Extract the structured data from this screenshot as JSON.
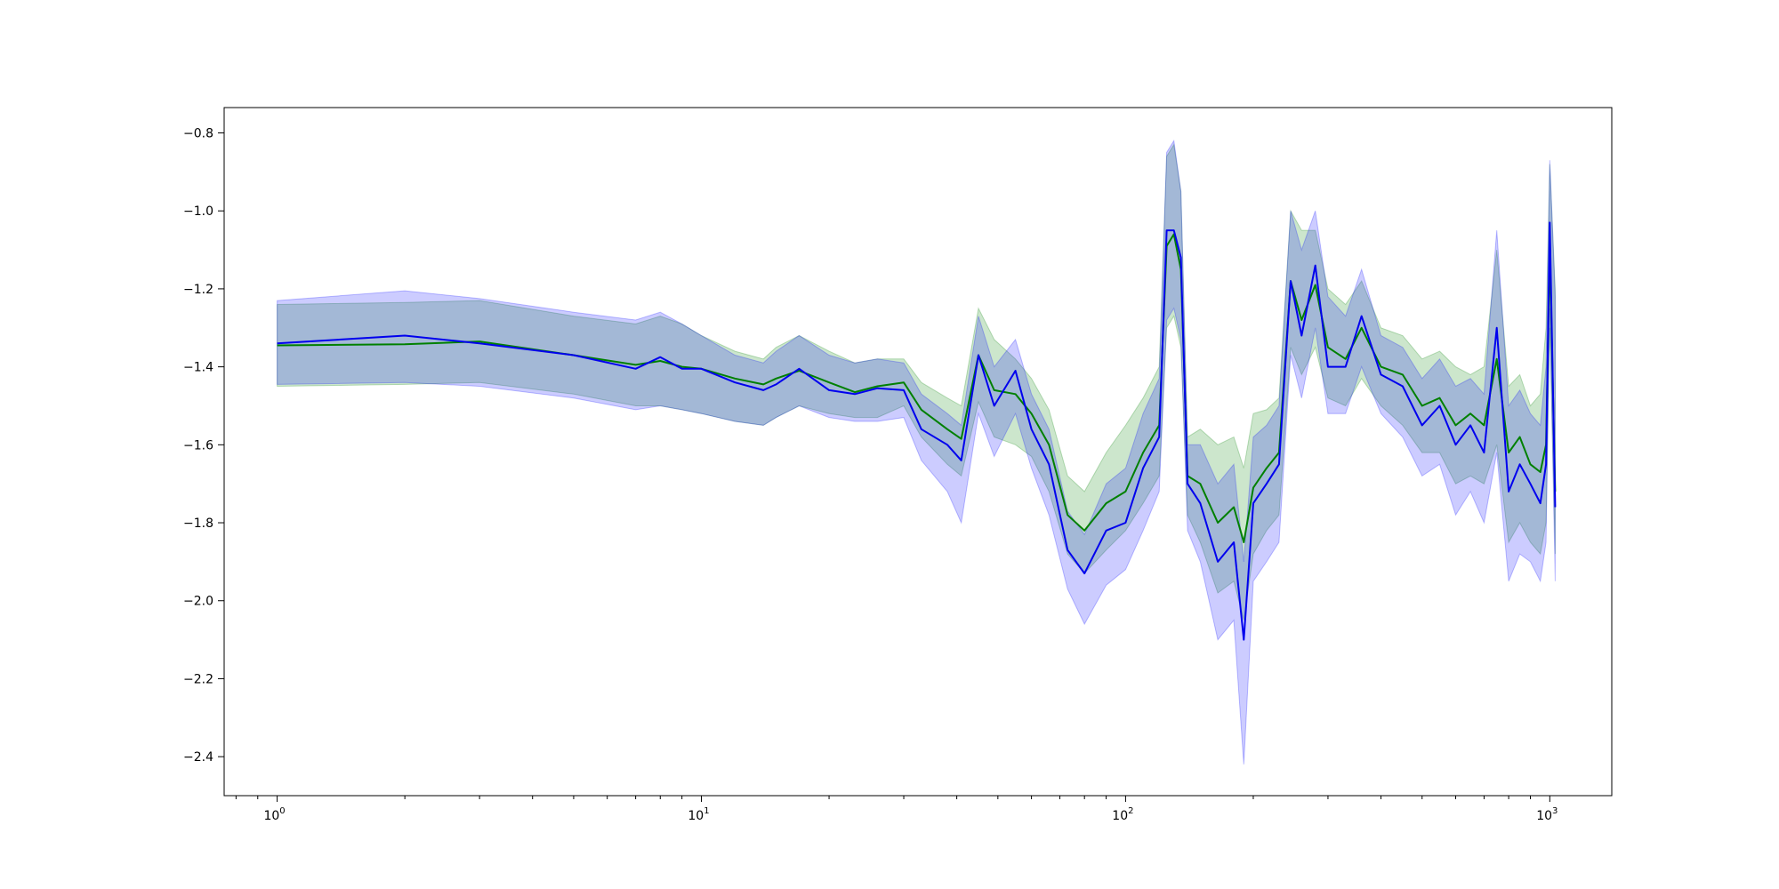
{
  "chart_data": {
    "type": "line",
    "title": "",
    "xlabel": "",
    "ylabel": "",
    "xscale": "log",
    "xlim": [
      0.75,
      1400
    ],
    "ylim": [
      -2.5,
      -0.735
    ],
    "grid": false,
    "x_ticks": [
      {
        "base": "10",
        "exp": "0",
        "value": 1
      },
      {
        "base": "10",
        "exp": "1",
        "value": 10
      },
      {
        "base": "10",
        "exp": "2",
        "value": 100
      },
      {
        "base": "10",
        "exp": "3",
        "value": 1000
      }
    ],
    "y_ticks": [
      {
        "label": "−0.8",
        "value": -0.8
      },
      {
        "label": "−1.0",
        "value": -1.0
      },
      {
        "label": "−1.2",
        "value": -1.2
      },
      {
        "label": "−1.4",
        "value": -1.4
      },
      {
        "label": "−1.6",
        "value": -1.6
      },
      {
        "label": "−1.8",
        "value": -1.8
      },
      {
        "label": "−2.0",
        "value": -2.0
      },
      {
        "label": "−2.2",
        "value": -2.2
      },
      {
        "label": "−2.4",
        "value": -2.4
      }
    ],
    "series": [
      {
        "color": "#008000",
        "band_fill": "#008000",
        "band_opacity": 0.2,
        "x": [
          1,
          2,
          3,
          5,
          7,
          8,
          9,
          10,
          12,
          14,
          15,
          17,
          20,
          23,
          26,
          30,
          33,
          38,
          41,
          45,
          49,
          55,
          60,
          66,
          73,
          80,
          90,
          100,
          110,
          120,
          125,
          130,
          135,
          140,
          150,
          165,
          180,
          190,
          200,
          215,
          230,
          245,
          260,
          280,
          300,
          330,
          360,
          400,
          450,
          500,
          550,
          600,
          650,
          700,
          750,
          800,
          850,
          900,
          950,
          980,
          1000,
          1030
        ],
        "y": [
          -1.345,
          -1.342,
          -1.335,
          -1.37,
          -1.395,
          -1.385,
          -1.4,
          -1.405,
          -1.43,
          -1.445,
          -1.43,
          -1.41,
          -1.44,
          -1.465,
          -1.45,
          -1.44,
          -1.51,
          -1.56,
          -1.585,
          -1.37,
          -1.46,
          -1.47,
          -1.52,
          -1.6,
          -1.78,
          -1.82,
          -1.75,
          -1.72,
          -1.62,
          -1.55,
          -1.09,
          -1.06,
          -1.15,
          -1.68,
          -1.7,
          -1.8,
          -1.76,
          -1.85,
          -1.71,
          -1.66,
          -1.62,
          -1.18,
          -1.28,
          -1.19,
          -1.35,
          -1.38,
          -1.3,
          -1.4,
          -1.42,
          -1.5,
          -1.48,
          -1.55,
          -1.52,
          -1.55,
          -1.38,
          -1.62,
          -1.58,
          -1.65,
          -1.67,
          -1.6,
          -1.1,
          -1.72
        ],
        "upper": [
          -1.24,
          -1.235,
          -1.23,
          -1.27,
          -1.29,
          -1.27,
          -1.29,
          -1.32,
          -1.36,
          -1.38,
          -1.35,
          -1.32,
          -1.36,
          -1.39,
          -1.38,
          -1.38,
          -1.44,
          -1.48,
          -1.5,
          -1.25,
          -1.33,
          -1.38,
          -1.43,
          -1.51,
          -1.68,
          -1.72,
          -1.62,
          -1.55,
          -1.48,
          -1.4,
          -0.86,
          -0.83,
          -0.95,
          -1.58,
          -1.56,
          -1.6,
          -1.58,
          -1.66,
          -1.52,
          -1.51,
          -1.48,
          -1.0,
          -1.05,
          -1.05,
          -1.2,
          -1.24,
          -1.18,
          -1.3,
          -1.32,
          -1.38,
          -1.36,
          -1.4,
          -1.42,
          -1.4,
          -1.1,
          -1.45,
          -1.42,
          -1.5,
          -1.47,
          -1.3,
          -0.88,
          -1.2
        ],
        "lower": [
          -1.45,
          -1.445,
          -1.44,
          -1.47,
          -1.5,
          -1.5,
          -1.51,
          -1.52,
          -1.54,
          -1.55,
          -1.53,
          -1.5,
          -1.52,
          -1.53,
          -1.53,
          -1.5,
          -1.58,
          -1.65,
          -1.68,
          -1.49,
          -1.58,
          -1.6,
          -1.63,
          -1.72,
          -1.88,
          -1.93,
          -1.87,
          -1.82,
          -1.75,
          -1.68,
          -1.3,
          -1.27,
          -1.35,
          -1.78,
          -1.85,
          -1.98,
          -1.95,
          -2.05,
          -1.88,
          -1.82,
          -1.78,
          -1.35,
          -1.42,
          -1.35,
          -1.48,
          -1.5,
          -1.43,
          -1.5,
          -1.55,
          -1.62,
          -1.62,
          -1.7,
          -1.68,
          -1.7,
          -1.6,
          -1.85,
          -1.8,
          -1.85,
          -1.88,
          -1.8,
          -1.3,
          -1.88
        ]
      },
      {
        "color": "#0000ee",
        "band_fill": "#0000ff",
        "band_opacity": 0.2,
        "x": [
          1,
          2,
          3,
          5,
          7,
          8,
          9,
          10,
          12,
          14,
          15,
          17,
          20,
          23,
          26,
          30,
          33,
          38,
          41,
          45,
          49,
          55,
          60,
          66,
          73,
          80,
          90,
          100,
          110,
          120,
          125,
          130,
          135,
          140,
          150,
          165,
          180,
          190,
          200,
          215,
          230,
          245,
          260,
          280,
          300,
          330,
          360,
          400,
          450,
          500,
          550,
          600,
          650,
          700,
          750,
          800,
          850,
          900,
          950,
          980,
          1000,
          1030
        ],
        "y": [
          -1.34,
          -1.32,
          -1.34,
          -1.37,
          -1.405,
          -1.375,
          -1.405,
          -1.405,
          -1.44,
          -1.46,
          -1.445,
          -1.405,
          -1.46,
          -1.47,
          -1.455,
          -1.46,
          -1.56,
          -1.6,
          -1.64,
          -1.37,
          -1.5,
          -1.41,
          -1.56,
          -1.65,
          -1.87,
          -1.93,
          -1.82,
          -1.8,
          -1.66,
          -1.58,
          -1.05,
          -1.05,
          -1.12,
          -1.7,
          -1.75,
          -1.9,
          -1.85,
          -2.1,
          -1.75,
          -1.7,
          -1.65,
          -1.18,
          -1.32,
          -1.14,
          -1.4,
          -1.4,
          -1.27,
          -1.42,
          -1.45,
          -1.55,
          -1.5,
          -1.6,
          -1.55,
          -1.62,
          -1.3,
          -1.72,
          -1.65,
          -1.7,
          -1.75,
          -1.65,
          -1.03,
          -1.76
        ],
        "upper": [
          -1.23,
          -1.205,
          -1.225,
          -1.26,
          -1.28,
          -1.26,
          -1.29,
          -1.32,
          -1.37,
          -1.39,
          -1.36,
          -1.32,
          -1.37,
          -1.39,
          -1.38,
          -1.39,
          -1.47,
          -1.52,
          -1.55,
          -1.27,
          -1.4,
          -1.33,
          -1.47,
          -1.56,
          -1.77,
          -1.83,
          -1.7,
          -1.66,
          -1.52,
          -1.43,
          -0.85,
          -0.82,
          -0.95,
          -1.6,
          -1.6,
          -1.7,
          -1.65,
          -1.9,
          -1.58,
          -1.55,
          -1.5,
          -1.0,
          -1.1,
          -1.0,
          -1.22,
          -1.27,
          -1.15,
          -1.32,
          -1.35,
          -1.43,
          -1.38,
          -1.45,
          -1.43,
          -1.47,
          -1.05,
          -1.5,
          -1.46,
          -1.52,
          -1.55,
          -1.4,
          -0.87,
          -1.22
        ],
        "lower": [
          -1.445,
          -1.44,
          -1.45,
          -1.48,
          -1.51,
          -1.5,
          -1.51,
          -1.52,
          -1.54,
          -1.55,
          -1.53,
          -1.5,
          -1.53,
          -1.54,
          -1.54,
          -1.53,
          -1.64,
          -1.72,
          -1.8,
          -1.52,
          -1.63,
          -1.52,
          -1.66,
          -1.78,
          -1.97,
          -2.06,
          -1.96,
          -1.92,
          -1.82,
          -1.72,
          -1.28,
          -1.25,
          -1.33,
          -1.82,
          -1.9,
          -2.1,
          -2.05,
          -2.42,
          -1.95,
          -1.9,
          -1.85,
          -1.37,
          -1.48,
          -1.3,
          -1.52,
          -1.52,
          -1.4,
          -1.52,
          -1.58,
          -1.68,
          -1.65,
          -1.78,
          -1.72,
          -1.8,
          -1.62,
          -1.95,
          -1.88,
          -1.9,
          -1.95,
          -1.85,
          -1.25,
          -1.95
        ]
      }
    ]
  }
}
